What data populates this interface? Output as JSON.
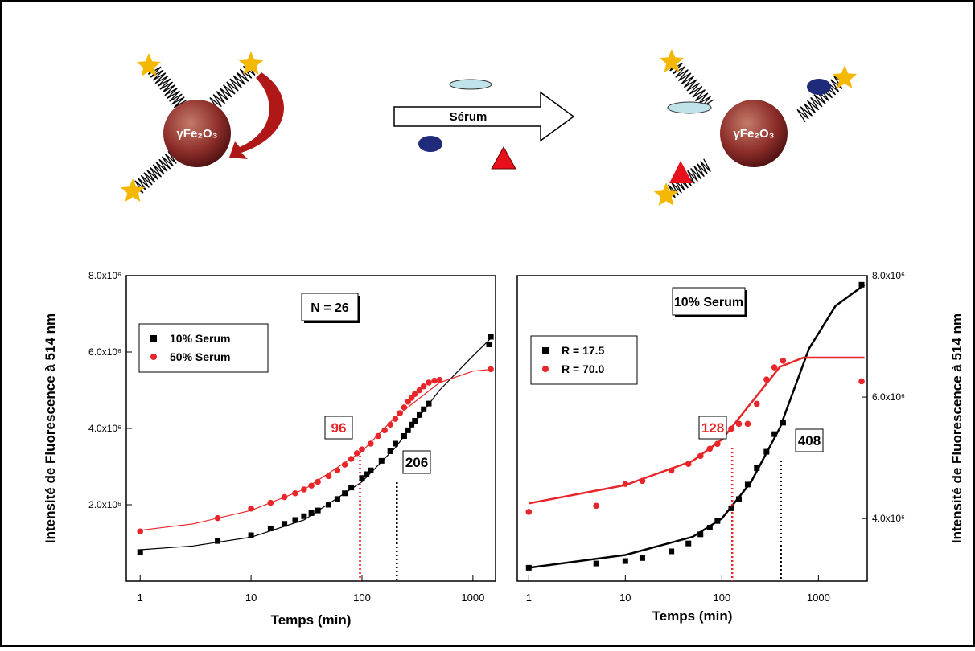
{
  "diagram": {
    "particle_label": "γFe₂O₃",
    "arrow_label": "Sérum"
  },
  "chart_data": [
    {
      "type": "scatter",
      "inset_label": "N = 26",
      "x_label": "Temps (min)",
      "y_label": "Intensité de Fluorescence à 514 nm",
      "log_x": true,
      "xlim": [
        0.75,
        1600
      ],
      "xticks": [
        1,
        10,
        100,
        1000
      ],
      "ylim": [
        0,
        8000000
      ],
      "yticks": [
        {
          "value": 2000000,
          "label": "2.0x10⁶"
        },
        {
          "value": 4000000,
          "label": "4.0x10⁶"
        },
        {
          "value": 6000000,
          "label": "6.0x10⁶"
        },
        {
          "value": 8000000,
          "label": "8.0x10⁶"
        }
      ],
      "series": [
        {
          "name": "10% Serum",
          "color": "#000000",
          "marker": "square",
          "x": [
            1,
            5,
            10,
            15,
            20,
            25,
            30,
            35,
            40,
            50,
            60,
            70,
            80,
            100,
            110,
            120,
            150,
            180,
            200,
            240,
            260,
            280,
            300,
            330,
            360,
            400,
            1400,
            1450
          ],
          "values": [
            760000,
            1050000,
            1200000,
            1380000,
            1500000,
            1600000,
            1700000,
            1780000,
            1850000,
            2000000,
            2150000,
            2300000,
            2450000,
            2700000,
            2800000,
            2900000,
            3150000,
            3400000,
            3600000,
            3800000,
            3950000,
            4100000,
            4200000,
            4350000,
            4500000,
            4650000,
            6200000,
            6400000
          ]
        },
        {
          "name": "50% Serum",
          "color": "#e8262a",
          "marker": "circle",
          "x": [
            1,
            5,
            10,
            15,
            20,
            25,
            30,
            35,
            40,
            50,
            60,
            70,
            80,
            90,
            100,
            120,
            140,
            160,
            180,
            200,
            220,
            240,
            260,
            280,
            300,
            330,
            360,
            400,
            450,
            500,
            1450
          ],
          "values": [
            1300000,
            1650000,
            1900000,
            2050000,
            2200000,
            2300000,
            2400000,
            2500000,
            2600000,
            2750000,
            2900000,
            3050000,
            3200000,
            3350000,
            3450000,
            3600000,
            3800000,
            3950000,
            4100000,
            4250000,
            4400000,
            4550000,
            4700000,
            4800000,
            4900000,
            5000000,
            5100000,
            5200000,
            5250000,
            5270000,
            5550000
          ]
        }
      ],
      "fits": [
        {
          "color": "#000000",
          "x": [
            1,
            3,
            10,
            30,
            100,
            200,
            500,
            1000,
            1500
          ],
          "values": [
            820000,
            920000,
            1150000,
            1600000,
            2600000,
            3500000,
            5000000,
            5900000,
            6400000
          ]
        },
        {
          "color": "#e8262a",
          "x": [
            1,
            3,
            10,
            30,
            100,
            200,
            500,
            1000,
            1500
          ],
          "values": [
            1330000,
            1500000,
            1850000,
            2400000,
            3400000,
            4300000,
            5200000,
            5500000,
            5550000
          ]
        }
      ],
      "annotations": [
        {
          "text": "96",
          "x": 96,
          "color": "#e8262a"
        },
        {
          "text": "206",
          "x": 206,
          "color": "#000000"
        }
      ]
    },
    {
      "type": "scatter",
      "inset_label": "10% Serum",
      "x_label": "Temps (min)",
      "y_label": "Intensité de Fluorescence à 514 nm",
      "log_x": true,
      "xlim": [
        0.76,
        3200
      ],
      "xticks": [
        1,
        10,
        100,
        1000
      ],
      "ylim": [
        2970000,
        8000000
      ],
      "yticks": [
        {
          "value": 4000000,
          "label": "4.0x10⁶"
        },
        {
          "value": 6000000,
          "label": "6.0x10⁶"
        },
        {
          "value": 8000000,
          "label": "8.0x10⁶"
        }
      ],
      "series": [
        {
          "name": "R = 17.5",
          "color": "#000000",
          "marker": "square",
          "x": [
            1,
            5,
            10,
            15,
            30,
            45,
            60,
            75,
            90,
            125,
            150,
            185,
            230,
            290,
            350,
            430,
            2800
          ],
          "values": [
            3190000,
            3260000,
            3300000,
            3350000,
            3460000,
            3590000,
            3740000,
            3850000,
            3960000,
            4170000,
            4320000,
            4560000,
            4830000,
            5100000,
            5390000,
            5580000,
            7850000
          ]
        },
        {
          "name": "R = 70.0",
          "color": "#e8262a",
          "marker": "circle",
          "x": [
            1,
            5,
            10,
            15,
            30,
            45,
            60,
            75,
            90,
            125,
            150,
            185,
            230,
            290,
            350,
            430,
            2800
          ],
          "values": [
            4110000,
            4210000,
            4570000,
            4620000,
            4790000,
            4900000,
            5030000,
            5150000,
            5230000,
            5480000,
            5560000,
            5560000,
            5890000,
            6290000,
            6490000,
            6600000,
            6260000
          ]
        }
      ],
      "fits": [
        {
          "color": "#000000",
          "x": [
            1,
            10,
            50,
            100,
            200,
            400,
            800,
            1500,
            3000
          ],
          "values": [
            3190000,
            3400000,
            3700000,
            4000000,
            4600000,
            5500000,
            6800000,
            7500000,
            7850000
          ]
        },
        {
          "color": "#e8262a",
          "x": [
            1,
            10,
            50,
            100,
            200,
            400,
            700,
            3000
          ],
          "values": [
            4250000,
            4550000,
            4950000,
            5300000,
            5900000,
            6500000,
            6650000,
            6650000
          ]
        }
      ],
      "annotations": [
        {
          "text": "128",
          "x": 128,
          "color": "#e8262a"
        },
        {
          "text": "408",
          "x": 408,
          "color": "#000000"
        }
      ]
    }
  ]
}
